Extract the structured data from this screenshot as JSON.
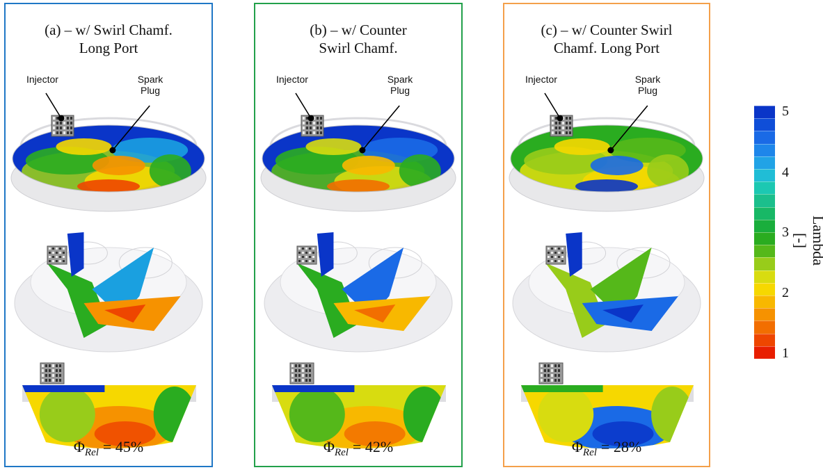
{
  "panels": [
    {
      "title_line1": "(a) – w/ Swirl Chamf.",
      "title_line2": "Long Port",
      "injector_label": "Injector",
      "spark_label_1": "Spark",
      "spark_label_2": "Plug",
      "phi_symbol": "Φ",
      "phi_sub": "Rel",
      "phi_value": "= 45%",
      "border_color": "#1f77c6"
    },
    {
      "title_line1": "(b) – w/ Counter",
      "title_line2": "Swirl Chamf.",
      "injector_label": "Injector",
      "spark_label_1": "Spark",
      "spark_label_2": "Plug",
      "phi_symbol": "Φ",
      "phi_sub": "Rel",
      "phi_value": "= 42%",
      "border_color": "#22a04a"
    },
    {
      "title_line1": "(c) – w/ Counter Swirl",
      "title_line2": "Chamf. Long Port",
      "injector_label": "Injector",
      "spark_label_1": "Spark",
      "spark_label_2": "Plug",
      "phi_symbol": "Φ",
      "phi_sub": "Rel",
      "phi_value": "= 28%",
      "border_color": "#f4a04a"
    }
  ],
  "colorbar": {
    "title": "Lambda [-]",
    "ticks": [
      "5",
      "4",
      "3",
      "2",
      "1"
    ],
    "range": [
      1,
      5
    ],
    "colors": [
      "#0a35c8",
      "#0f4ed8",
      "#1a6ae6",
      "#1e86ea",
      "#21a3e6",
      "#20bdd6",
      "#1cc8b2",
      "#1bbf8c",
      "#18b866",
      "#1aae3c",
      "#2aac20",
      "#55b81a",
      "#98cc1a",
      "#d8dc10",
      "#f6d800",
      "#f8b800",
      "#f69200",
      "#f26e00",
      "#ee4600",
      "#e81e00"
    ]
  }
}
